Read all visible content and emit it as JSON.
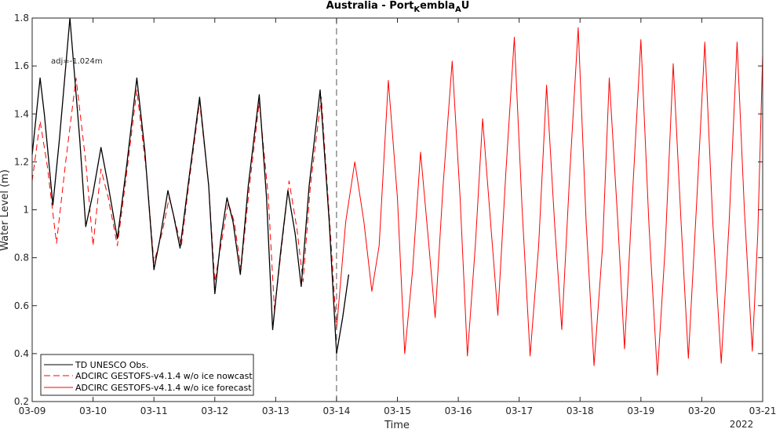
{
  "chart_data": {
    "type": "line",
    "title": "Australia - Port",
    "title_sub1": "K",
    "title_mid": "embla",
    "title_sub2": "A",
    "title_end": "U",
    "xlabel": "Time",
    "ylabel": "Water Level (m)",
    "year_label": "2022",
    "annotation": "adj=-1.024m",
    "x_ticks": [
      "03-09",
      "03-10",
      "03-11",
      "03-12",
      "03-13",
      "03-14",
      "03-15",
      "03-16",
      "03-17",
      "03-18",
      "03-19",
      "03-20",
      "03-21"
    ],
    "y_ticks": [
      "0.2",
      "0.4",
      "0.6",
      "0.8",
      "1",
      "1.2",
      "1.4",
      "1.6",
      "1.8"
    ],
    "xlim_days": [
      0,
      12
    ],
    "ylim": [
      0.2,
      1.8
    ],
    "forecast_start_day": 5,
    "grid": false,
    "legend_position": "bottom-left",
    "colors": {
      "obs": "#000000",
      "nowcast": "#ff0000",
      "forecast": "#ff0000"
    },
    "series": [
      {
        "name": "TD UNESCO Obs.",
        "style": "solid",
        "points": [
          [
            0.0,
            1.23
          ],
          [
            0.13,
            1.55
          ],
          [
            0.2,
            1.4
          ],
          [
            0.34,
            1.02
          ],
          [
            0.45,
            1.3
          ],
          [
            0.62,
            1.8
          ],
          [
            0.78,
            1.3
          ],
          [
            0.88,
            0.93
          ],
          [
            1.0,
            1.07
          ],
          [
            1.13,
            1.26
          ],
          [
            1.25,
            1.1
          ],
          [
            1.4,
            0.88
          ],
          [
            1.55,
            1.18
          ],
          [
            1.72,
            1.55
          ],
          [
            1.85,
            1.25
          ],
          [
            2.0,
            0.75
          ],
          [
            2.1,
            0.88
          ],
          [
            2.23,
            1.08
          ],
          [
            2.32,
            0.98
          ],
          [
            2.43,
            0.84
          ],
          [
            2.57,
            1.12
          ],
          [
            2.75,
            1.47
          ],
          [
            2.9,
            1.1
          ],
          [
            3.0,
            0.65
          ],
          [
            3.1,
            0.88
          ],
          [
            3.2,
            1.05
          ],
          [
            3.3,
            0.95
          ],
          [
            3.42,
            0.73
          ],
          [
            3.55,
            1.1
          ],
          [
            3.73,
            1.48
          ],
          [
            3.85,
            1.05
          ],
          [
            3.95,
            0.5
          ],
          [
            4.08,
            0.82
          ],
          [
            4.2,
            1.08
          ],
          [
            4.32,
            0.9
          ],
          [
            4.42,
            0.68
          ],
          [
            4.55,
            1.1
          ],
          [
            4.73,
            1.5
          ],
          [
            4.88,
            0.95
          ],
          [
            5.0,
            0.4
          ],
          [
            5.1,
            0.55
          ],
          [
            5.2,
            0.73
          ]
        ]
      },
      {
        "name": "ADCIRC GESTOFS-v4.1.4 w/o ice nowcast",
        "style": "dashed",
        "points": [
          [
            0.0,
            1.12
          ],
          [
            0.13,
            1.37
          ],
          [
            0.25,
            1.18
          ],
          [
            0.4,
            0.86
          ],
          [
            0.55,
            1.2
          ],
          [
            0.72,
            1.55
          ],
          [
            0.88,
            1.2
          ],
          [
            1.0,
            0.85
          ],
          [
            1.13,
            1.17
          ],
          [
            1.25,
            1.05
          ],
          [
            1.4,
            0.85
          ],
          [
            1.55,
            1.15
          ],
          [
            1.72,
            1.5
          ],
          [
            1.88,
            1.15
          ],
          [
            2.0,
            0.78
          ],
          [
            2.13,
            0.9
          ],
          [
            2.25,
            1.05
          ],
          [
            2.35,
            0.95
          ],
          [
            2.45,
            0.85
          ],
          [
            2.57,
            1.1
          ],
          [
            2.75,
            1.45
          ],
          [
            2.9,
            1.1
          ],
          [
            3.0,
            0.7
          ],
          [
            3.1,
            0.85
          ],
          [
            3.22,
            1.03
          ],
          [
            3.32,
            0.95
          ],
          [
            3.43,
            0.75
          ],
          [
            3.57,
            1.1
          ],
          [
            3.73,
            1.45
          ],
          [
            3.88,
            1.05
          ],
          [
            3.98,
            0.58
          ],
          [
            4.1,
            0.85
          ],
          [
            4.22,
            1.12
          ],
          [
            4.35,
            0.92
          ],
          [
            4.45,
            0.7
          ],
          [
            4.57,
            1.1
          ],
          [
            4.75,
            1.47
          ],
          [
            4.9,
            0.9
          ],
          [
            5.0,
            0.5
          ]
        ]
      },
      {
        "name": "ADCIRC GESTOFS-v4.1.4 w/o ice forecast",
        "style": "solid",
        "points": [
          [
            5.0,
            0.5
          ],
          [
            5.15,
            0.95
          ],
          [
            5.3,
            1.2
          ],
          [
            5.45,
            0.95
          ],
          [
            5.58,
            0.66
          ],
          [
            5.7,
            0.85
          ],
          [
            5.85,
            1.54
          ],
          [
            6.0,
            1.05
          ],
          [
            6.12,
            0.4
          ],
          [
            6.25,
            0.75
          ],
          [
            6.38,
            1.24
          ],
          [
            6.5,
            0.9
          ],
          [
            6.62,
            0.55
          ],
          [
            6.75,
            1.1
          ],
          [
            6.9,
            1.62
          ],
          [
            7.03,
            1.05
          ],
          [
            7.15,
            0.39
          ],
          [
            7.28,
            0.85
          ],
          [
            7.4,
            1.38
          ],
          [
            7.53,
            0.95
          ],
          [
            7.65,
            0.56
          ],
          [
            7.78,
            1.15
          ],
          [
            7.92,
            1.72
          ],
          [
            8.05,
            1.0
          ],
          [
            8.18,
            0.39
          ],
          [
            8.32,
            0.85
          ],
          [
            8.45,
            1.52
          ],
          [
            8.58,
            0.95
          ],
          [
            8.7,
            0.5
          ],
          [
            8.83,
            1.15
          ],
          [
            8.97,
            1.76
          ],
          [
            9.1,
            0.95
          ],
          [
            9.23,
            0.35
          ],
          [
            9.37,
            0.85
          ],
          [
            9.48,
            1.55
          ],
          [
            9.62,
            0.95
          ],
          [
            9.73,
            0.42
          ],
          [
            9.87,
            1.1
          ],
          [
            10.0,
            1.71
          ],
          [
            10.13,
            0.95
          ],
          [
            10.27,
            0.31
          ],
          [
            10.4,
            0.85
          ],
          [
            10.53,
            1.61
          ],
          [
            10.66,
            0.95
          ],
          [
            10.78,
            0.38
          ],
          [
            10.92,
            1.05
          ],
          [
            11.05,
            1.7
          ],
          [
            11.18,
            0.95
          ],
          [
            11.32,
            0.36
          ],
          [
            11.45,
            0.95
          ],
          [
            11.58,
            1.7
          ],
          [
            11.7,
            1.0
          ],
          [
            11.83,
            0.41
          ],
          [
            11.92,
            0.9
          ],
          [
            12.0,
            1.65
          ]
        ]
      }
    ]
  }
}
